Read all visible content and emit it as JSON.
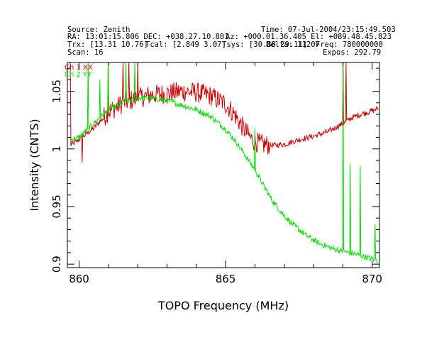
{
  "header": {
    "source": "Source: Zenith",
    "time": "Time: 07-Jul-2004/23:15:49.503",
    "radec": "RA: 13:01:15.806 DEC: +038.27.10.801",
    "azel": "Az: +000.01.36.405 El: +089.48.45.823",
    "trx": "Trx: [13.31 10.76]",
    "tcal": "Tcal: [2.849 3.07]",
    "tsys": "Tsys: [30.88 29.11]",
    "delta": "Delta: 11207",
    "freq": "Freq: 780000000",
    "scan": "Scan: 16",
    "expos": "Expos: 292.79"
  },
  "colors": {
    "ch1": "#cc0000",
    "ch2": "#00dd00"
  },
  "chart_data": {
    "type": "line",
    "title": "",
    "xlabel": "TOPO Frequency (MHz)",
    "ylabel": "Intensity (CNTS)",
    "xlim": [
      859.6,
      870.25
    ],
    "ylim": [
      0.897,
      1.075
    ],
    "xticks": [
      "860",
      "865",
      "870"
    ],
    "yticks": [
      "0.9",
      "0.95",
      "1",
      "1.05"
    ],
    "series": [
      {
        "name": "Ch 1 XX",
        "x": [
          859.7,
          860.0,
          860.5,
          861.0,
          861.5,
          862.0,
          862.5,
          863.0,
          863.5,
          864.0,
          864.5,
          865.0,
          865.3,
          865.6,
          865.9,
          866.2,
          866.6,
          867.0,
          867.5,
          868.0,
          868.5,
          869.0,
          869.3,
          869.6,
          870.0,
          870.2
        ],
        "y": [
          1.003,
          1.008,
          1.018,
          1.032,
          1.04,
          1.044,
          1.047,
          1.048,
          1.05,
          1.049,
          1.046,
          1.039,
          1.03,
          1.018,
          1.008,
          1.004,
          1.003,
          1.004,
          1.008,
          1.011,
          1.015,
          1.022,
          1.027,
          1.03,
          1.033,
          1.035
        ],
        "spikes": [
          {
            "x": 859.7,
            "y": 1.075
          },
          {
            "x": 860.1,
            "y": 0.988
          },
          {
            "x": 861.0,
            "y": 1.075
          },
          {
            "x": 861.5,
            "y": 1.075
          },
          {
            "x": 861.7,
            "y": 1.075
          },
          {
            "x": 862.0,
            "y": 1.075
          },
          {
            "x": 869.0,
            "y": 1.075
          },
          {
            "x": 869.1,
            "y": 1.075
          }
        ]
      },
      {
        "name": "Ch 2 YY",
        "x": [
          859.7,
          860.0,
          860.5,
          861.0,
          861.5,
          862.0,
          862.5,
          863.0,
          863.5,
          864.0,
          864.5,
          865.0,
          865.3,
          865.6,
          866.0,
          866.3,
          866.6,
          867.0,
          867.4,
          867.8,
          868.2,
          868.6,
          869.0,
          869.4,
          869.8,
          870.2
        ],
        "y": [
          1.008,
          1.01,
          1.022,
          1.034,
          1.04,
          1.044,
          1.044,
          1.042,
          1.038,
          1.034,
          1.028,
          1.017,
          1.008,
          0.997,
          0.982,
          0.968,
          0.955,
          0.942,
          0.932,
          0.924,
          0.918,
          0.914,
          0.911,
          0.909,
          0.906,
          0.903
        ],
        "spikes": [
          {
            "x": 859.7,
            "y": 1.008
          },
          {
            "x": 860.3,
            "y": 1.075
          },
          {
            "x": 860.7,
            "y": 1.06
          },
          {
            "x": 861.0,
            "y": 1.075
          },
          {
            "x": 861.6,
            "y": 1.075
          },
          {
            "x": 861.9,
            "y": 1.075
          },
          {
            "x": 866.0,
            "y": 1.018
          },
          {
            "x": 869.0,
            "y": 1.075
          },
          {
            "x": 869.25,
            "y": 0.987
          },
          {
            "x": 869.6,
            "y": 0.985
          },
          {
            "x": 870.1,
            "y": 0.935
          }
        ]
      }
    ]
  }
}
